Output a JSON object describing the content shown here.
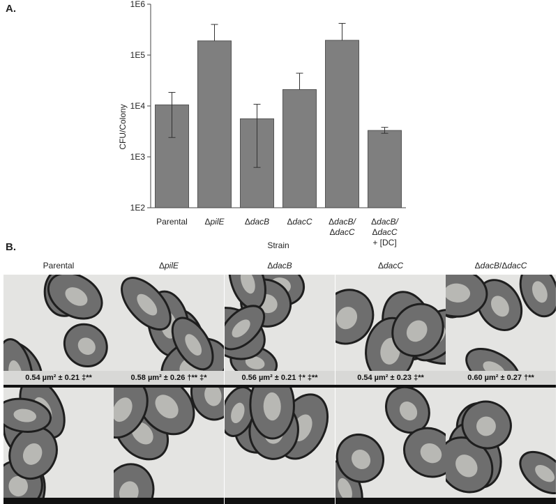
{
  "panel_a_label": "A.",
  "panel_b_label": "B.",
  "chart_data": {
    "type": "bar",
    "scale": "log",
    "ylabel": "CFU/Colony",
    "xlabel": "Strain",
    "ylim": [
      100,
      1000000
    ],
    "yticks": [
      "1E2",
      "1E3",
      "1E4",
      "1E5",
      "1E6"
    ],
    "categories": [
      {
        "lines": [
          "Parental"
        ],
        "italic": [
          false
        ]
      },
      {
        "lines": [
          "ΔpilE"
        ],
        "italic": [
          true
        ]
      },
      {
        "lines": [
          "ΔdacB"
        ],
        "italic": [
          true
        ]
      },
      {
        "lines": [
          "ΔdacC"
        ],
        "italic": [
          true
        ]
      },
      {
        "lines": [
          "ΔdacB/",
          "ΔdacC"
        ],
        "italic": [
          true,
          true
        ]
      },
      {
        "lines": [
          "ΔdacB/",
          "ΔdacC",
          "+ [DC]"
        ],
        "italic": [
          true,
          true,
          false
        ]
      }
    ],
    "values": [
      10500,
      190000,
      5600,
      21000,
      195000,
      3300
    ],
    "error_high": [
      18500,
      400000,
      10800,
      44000,
      420000,
      3800
    ],
    "error_low": [
      2400,
      190000,
      620,
      21000,
      195000,
      2900
    ],
    "bar_color": "#7f7f7f"
  },
  "micrograph_columns": [
    {
      "label": "Parental",
      "stat": "0.54 µm² ± 0.21 ‡**"
    },
    {
      "label": "ΔpilE",
      "stat": "0.58 µm² ± 0.26 †** ‡*"
    },
    {
      "label": "ΔdacB",
      "stat": "0.56 µm² ± 0.21 †* ‡**"
    },
    {
      "label": "ΔdacC",
      "stat": "0.54 µm² ± 0.23 ‡**"
    },
    {
      "label": "ΔdacB/ΔdacC",
      "stat": "0.60 µm² ± 0.27 †**"
    }
  ]
}
